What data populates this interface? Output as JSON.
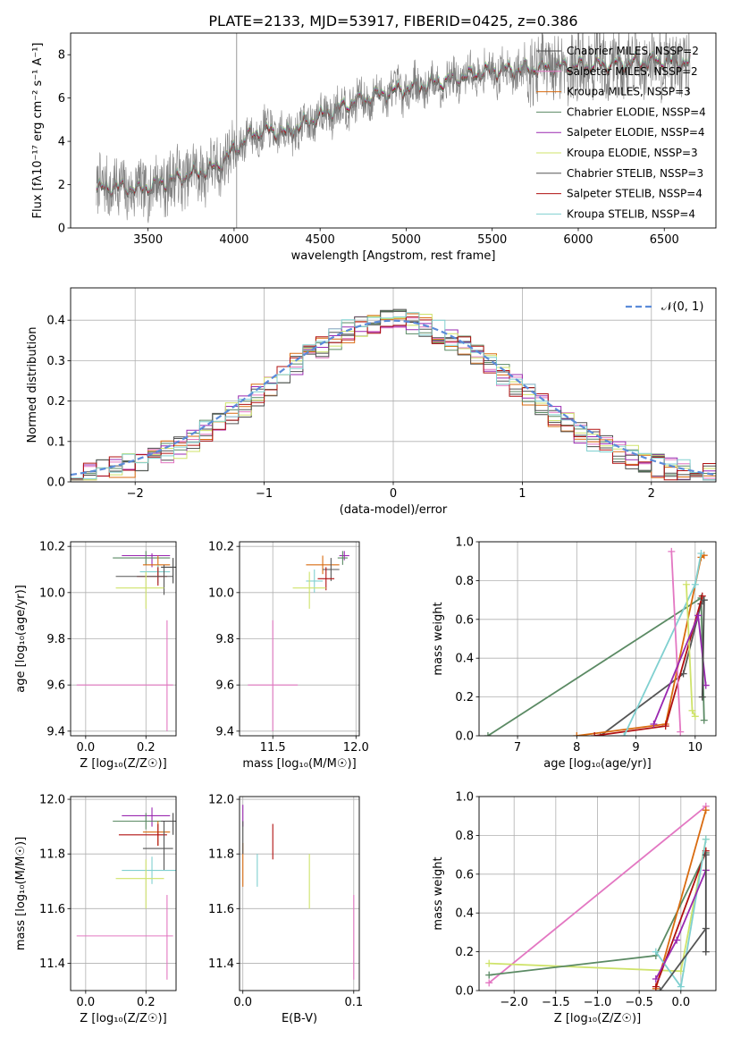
{
  "figure_title": "PLATE=2133, MJD=53917, FIBERID=0425, z=0.386",
  "colors": {
    "Chabrier MILES": "#4a4a4a",
    "Salpeter MILES": "#e377c2",
    "Kroupa MILES": "#d96b10",
    "Chabrier ELODIE": "#5b8a64",
    "Salpeter ELODIE": "#9a28b0",
    "Kroupa ELODIE": "#cfe36a",
    "Chabrier STELIB": "#555555",
    "Salpeter STELIB": "#b01010",
    "Kroupa STELIB": "#80d0d0",
    "gaussian": "#5b8bd9"
  },
  "chart_data": [
    {
      "id": "spectrum",
      "type": "line",
      "xlabel": "wavelength [Angstrom, rest frame]",
      "ylabel": "Flux [f$_\\lambda$10$^{-17}$ erg cm$^{-2}$ s$^{-1}$ A$^{-1}$]",
      "ylabel_display": "Flux [fλ10⁻¹⁷ erg cm⁻² s⁻¹ A⁻¹]",
      "xlim": [
        3050,
        6800
      ],
      "ylim": [
        0,
        9
      ],
      "xticks": [
        3500,
        4000,
        4500,
        5000,
        5500,
        6000,
        6500
      ],
      "yticks": [
        0,
        2,
        4,
        6,
        8
      ],
      "legend": [
        "Chabrier MILES, N$_{SSP}$=2",
        "Salpeter MILES, N$_{SSP}$=2",
        "Kroupa MILES, N$_{SSP}$=3",
        "Chabrier ELODIE, N$_{SSP}$=4",
        "Salpeter ELODIE, N$_{SSP}$=4",
        "Kroupa ELODIE, N$_{SSP}$=3",
        "Chabrier STELIB, N$_{SSP}$=3",
        "Salpeter STELIB, N$_{SSP}$=4",
        "Kroupa STELIB, N$_{SSP}$=4"
      ],
      "legend_display": [
        "Chabrier MILES, NSSP=2",
        "Salpeter MILES, NSSP=2",
        "Kroupa MILES, NSSP=3",
        "Chabrier ELODIE, NSSP=4",
        "Salpeter ELODIE, NSSP=4",
        "Kroupa ELODIE, NSSP=3",
        "Chabrier STELIB, NSSP=3",
        "Salpeter STELIB, NSSP=4",
        "Kroupa STELIB, NSSP=4"
      ],
      "legend_position": "upper right",
      "continuum": {
        "x": [
          3200,
          3300,
          3450,
          3600,
          3750,
          3900,
          4000,
          4100,
          4200,
          4300,
          4500,
          4700,
          4900,
          5100,
          5300,
          5500,
          5700,
          5900,
          6100,
          6300,
          6500,
          6650
        ],
        "y": [
          1.75,
          1.9,
          1.75,
          2.1,
          2.45,
          2.8,
          3.6,
          4.3,
          4.5,
          4.35,
          5.15,
          5.8,
          6.25,
          6.55,
          6.9,
          7.25,
          7.3,
          7.45,
          7.5,
          7.6,
          7.7,
          7.6
        ]
      },
      "model_offsets": [
        0.0,
        0.05,
        0.1,
        -0.05,
        0.08,
        0.15,
        -0.1,
        0.02,
        0.12
      ]
    },
    {
      "id": "residuals",
      "type": "histogram",
      "xlabel": "(data-model)/error",
      "ylabel": "Normed distribution",
      "xlim": [
        -2.5,
        2.5
      ],
      "ylim": [
        0,
        0.48
      ],
      "xticks": [
        -2,
        -1,
        0,
        1,
        2
      ],
      "yticks": [
        0.0,
        0.1,
        0.2,
        0.3,
        0.4
      ],
      "legend": [
        "$\\mathcal{N}(0,1)$"
      ],
      "legend_display": "𝒩(0, 1)",
      "legend_position": "upper right",
      "bin_width": 0.1,
      "bin_start": -2.5
    },
    {
      "id": "age_vs_Z",
      "type": "errorbar",
      "xlabel": "Z [log$_{10}$(Z/Z$_\\odot$)]",
      "xlabel_display": "Z [log₁₀(Z/Z☉)]",
      "ylabel": "age  [log$_{10}$(age/yr)]",
      "ylabel_display": "age  [log₁₀(age/yr)]",
      "xlim": [
        -0.05,
        0.3
      ],
      "ylim": [
        9.38,
        10.22
      ],
      "xticks": [
        0.0,
        0.2
      ],
      "yticks": [
        9.4,
        9.6,
        9.8,
        10.0,
        10.2
      ],
      "points": [
        {
          "model": "Salpeter MILES",
          "x": 0.27,
          "y": 9.6,
          "xerr": [
            0.3,
            0.02
          ],
          "yerr": [
            0.2,
            0.28
          ]
        },
        {
          "model": "Salpeter ELODIE",
          "x": 0.22,
          "y": 10.16,
          "xerr": [
            0.1,
            0.06
          ],
          "yerr": [
            0.05,
            0.01
          ]
        },
        {
          "model": "Chabrier ELODIE",
          "x": 0.2,
          "y": 10.15,
          "xerr": [
            0.11,
            0.08
          ],
          "yerr": [
            0.03,
            0.03
          ]
        },
        {
          "model": "Kroupa MILES",
          "x": 0.24,
          "y": 10.12,
          "xerr": [
            0.05,
            0.04
          ],
          "yerr": [
            0.05,
            0.04
          ]
        },
        {
          "model": "Kroupa STELIB",
          "x": 0.24,
          "y": 10.09,
          "xerr": [
            0.06,
            0.04
          ],
          "yerr": [
            0.05,
            0.03
          ]
        },
        {
          "model": "Salpeter STELIB",
          "x": 0.24,
          "y": 10.07,
          "xerr": [
            0.07,
            0.03
          ],
          "yerr": [
            0.04,
            0.04
          ]
        },
        {
          "model": "Chabrier STELIB",
          "x": 0.26,
          "y": 10.07,
          "xerr": [
            0.16,
            0.03
          ],
          "yerr": [
            0.08,
            0.05
          ]
        },
        {
          "model": "Kroupa ELODIE",
          "x": 0.2,
          "y": 10.02,
          "xerr": [
            0.1,
            0.06
          ],
          "yerr": [
            0.09,
            0.07
          ]
        },
        {
          "model": "Chabrier MILES",
          "x": 0.29,
          "y": 10.11,
          "xerr": [
            0.04,
            0.01
          ],
          "yerr": [
            0.07,
            0.04
          ]
        }
      ]
    },
    {
      "id": "age_vs_mass",
      "type": "errorbar",
      "xlabel": "mass [log$_{10}$(M/M$_\\odot$)]",
      "xlabel_display": "mass [log₁₀(M/M☉)]",
      "xlim": [
        11.3,
        12.02
      ],
      "ylim": [
        9.38,
        10.22
      ],
      "xticks": [
        11.5,
        12.0
      ],
      "yticks": [
        9.4,
        9.6,
        9.8,
        10.0,
        10.2
      ],
      "points": [
        {
          "model": "Salpeter MILES",
          "x": 11.5,
          "y": 9.6,
          "xerr": [
            0.15,
            0.15
          ],
          "yerr": [
            0.2,
            0.28
          ]
        },
        {
          "model": "Salpeter ELODIE",
          "x": 11.93,
          "y": 10.16,
          "xerr": [
            0.03,
            0.03
          ],
          "yerr": [
            0.02,
            0.02
          ]
        },
        {
          "model": "Kroupa MILES",
          "x": 11.8,
          "y": 10.12,
          "xerr": [
            0.1,
            0.1
          ],
          "yerr": [
            0.04,
            0.04
          ]
        },
        {
          "model": "Chabrier STELIB",
          "x": 11.85,
          "y": 10.1,
          "xerr": [
            0.05,
            0.05
          ],
          "yerr": [
            0.05,
            0.05
          ]
        },
        {
          "model": "Kroupa STELIB",
          "x": 11.75,
          "y": 10.05,
          "xerr": [
            0.05,
            0.05
          ],
          "yerr": [
            0.05,
            0.05
          ]
        },
        {
          "model": "Salpeter STELIB",
          "x": 11.82,
          "y": 10.06,
          "xerr": [
            0.05,
            0.05
          ],
          "yerr": [
            0.05,
            0.05
          ]
        },
        {
          "model": "Kroupa ELODIE",
          "x": 11.72,
          "y": 10.02,
          "xerr": [
            0.1,
            0.1
          ],
          "yerr": [
            0.09,
            0.07
          ]
        },
        {
          "model": "Chabrier ELODIE",
          "x": 11.92,
          "y": 10.15,
          "xerr": [
            0.03,
            0.03
          ],
          "yerr": [
            0.03,
            0.03
          ]
        }
      ]
    },
    {
      "id": "massweight_vs_age",
      "type": "line",
      "xlabel": "age  [log$_{10}$(age/yr)]",
      "xlabel_display": "age  [log₁₀(age/yr)]",
      "ylabel": "mass weight",
      "xlim": [
        6.35,
        10.35
      ],
      "ylim": [
        0,
        1
      ],
      "xticks": [
        7,
        8,
        9,
        10
      ],
      "yticks": [
        0.0,
        0.2,
        0.4,
        0.6,
        0.8,
        1.0
      ],
      "series": [
        {
          "model": "Chabrier ELODIE",
          "x": [
            6.5,
            10.1,
            10.15
          ],
          "y": [
            0.0,
            0.71,
            0.08
          ]
        },
        {
          "model": "Chabrier STELIB",
          "x": [
            8.4,
            9.8,
            10.1,
            10.15
          ],
          "y": [
            0.0,
            0.32,
            0.68,
            0.7
          ]
        },
        {
          "model": "Kroupa MILES",
          "x": [
            8.0,
            9.5,
            10.1,
            10.15
          ],
          "y": [
            0.0,
            0.06,
            0.92,
            0.93
          ]
        },
        {
          "model": "Salpeter STELIB",
          "x": [
            8.3,
            9.5,
            10.12
          ],
          "y": [
            0.0,
            0.05,
            0.72
          ]
        },
        {
          "model": "Kroupa STELIB",
          "x": [
            8.8,
            10.0,
            10.1
          ],
          "y": [
            0.0,
            0.78,
            0.94
          ]
        },
        {
          "model": "Salpeter MILES",
          "x": [
            9.6,
            9.75
          ],
          "y": [
            0.95,
            0.02
          ]
        },
        {
          "model": "Kroupa ELODIE",
          "x": [
            9.85,
            9.95,
            10.0
          ],
          "y": [
            0.78,
            0.13,
            0.1
          ]
        },
        {
          "model": "Salpeter ELODIE",
          "x": [
            9.3,
            10.05,
            10.18
          ],
          "y": [
            0.06,
            0.62,
            0.26
          ]
        },
        {
          "model": "Chabrier MILES",
          "x": [
            10.12,
            10.15
          ],
          "y": [
            0.2,
            0.7
          ]
        }
      ]
    },
    {
      "id": "mass_vs_Z",
      "type": "errorbar",
      "xlabel": "Z [log$_{10}$(Z/Z$_\\odot$)]",
      "xlabel_display": "Z [log₁₀(Z/Z☉)]",
      "ylabel": "mass [log$_{10}$(M/M$_\\odot$)]",
      "ylabel_display": "mass [log₁₀(M/M☉)]",
      "xlim": [
        -0.05,
        0.3
      ],
      "ylim": [
        11.3,
        12.01
      ],
      "xticks": [
        0.0,
        0.2
      ],
      "yticks": [
        11.4,
        11.6,
        11.8,
        12.0
      ],
      "points": [
        {
          "model": "Salpeter MILES",
          "x": 0.27,
          "y": 11.5,
          "xerr": [
            0.3,
            0.02
          ],
          "yerr": [
            0.16,
            0.15
          ]
        },
        {
          "model": "Salpeter ELODIE",
          "x": 0.22,
          "y": 11.94,
          "xerr": [
            0.1,
            0.06
          ],
          "yerr": [
            0.04,
            0.03
          ]
        },
        {
          "model": "Chabrier ELODIE",
          "x": 0.2,
          "y": 11.92,
          "xerr": [
            0.11,
            0.08
          ],
          "yerr": [
            0.03,
            0.03
          ]
        },
        {
          "model": "Kroupa MILES",
          "x": 0.24,
          "y": 11.88,
          "xerr": [
            0.05,
            0.04
          ],
          "yerr": [
            0.05,
            0.04
          ]
        },
        {
          "model": "Salpeter STELIB",
          "x": 0.24,
          "y": 11.87,
          "xerr": [
            0.13,
            0.03
          ],
          "yerr": [
            0.04,
            0.04
          ]
        },
        {
          "model": "Chabrier STELIB",
          "x": 0.26,
          "y": 11.82,
          "xerr": [
            0.07,
            0.03
          ],
          "yerr": [
            0.08,
            0.1
          ]
        },
        {
          "model": "Kroupa STELIB",
          "x": 0.22,
          "y": 11.74,
          "xerr": [
            0.1,
            0.08
          ],
          "yerr": [
            0.05,
            0.05
          ]
        },
        {
          "model": "Kroupa ELODIE",
          "x": 0.2,
          "y": 11.71,
          "xerr": [
            0.1,
            0.06
          ],
          "yerr": [
            0.11,
            0.07
          ]
        },
        {
          "model": "Chabrier MILES",
          "x": 0.29,
          "y": 11.92,
          "xerr": [
            0.04,
            0.01
          ],
          "yerr": [
            0.05,
            0.03
          ]
        }
      ]
    },
    {
      "id": "mass_vs_EBV",
      "type": "errorbar",
      "xlabel": "E(B-V)",
      "xlim": [
        -0.003,
        0.105
      ],
      "ylim": [
        11.3,
        12.01
      ],
      "xticks": [
        0.0,
        0.1
      ],
      "yticks": [
        11.4,
        11.6,
        11.8,
        12.0
      ],
      "points": [
        {
          "model": "Salpeter MILES",
          "x": 0.1,
          "y": 11.5,
          "xerr": [
            0,
            0
          ],
          "yerr": [
            0.16,
            0.15
          ]
        },
        {
          "model": "Salpeter ELODIE",
          "x": 0.0,
          "y": 11.94,
          "xerr": [
            0,
            0
          ],
          "yerr": [
            0.04,
            0.04
          ]
        },
        {
          "model": "Kroupa MILES",
          "x": 0.0,
          "y": 11.76,
          "xerr": [
            0,
            0
          ],
          "yerr": [
            0.08,
            0.08
          ]
        },
        {
          "model": "Salpeter STELIB",
          "x": 0.027,
          "y": 11.84,
          "xerr": [
            0,
            0
          ],
          "yerr": [
            0.06,
            0.07
          ]
        },
        {
          "model": "Kroupa STELIB",
          "x": 0.013,
          "y": 11.74,
          "xerr": [
            0,
            0
          ],
          "yerr": [
            0.06,
            0.06
          ]
        },
        {
          "model": "Kroupa ELODIE",
          "x": 0.06,
          "y": 11.7,
          "xerr": [
            0,
            0
          ],
          "yerr": [
            0.1,
            0.1
          ]
        },
        {
          "model": "Chabrier STELIB",
          "x": 0.0,
          "y": 11.86,
          "xerr": [
            0,
            0
          ],
          "yerr": [
            0.06,
            0.06
          ]
        }
      ]
    },
    {
      "id": "massweight_vs_Z",
      "type": "line",
      "xlabel": "Z [log$_{10}$(Z/Z$_\\odot$)]",
      "xlabel_display": "Z [log₁₀(Z/Z☉)]",
      "ylabel": "mass weight",
      "xlim": [
        -2.42,
        0.42
      ],
      "ylim": [
        0,
        1
      ],
      "xticks": [
        -2.0,
        -1.5,
        -1.0,
        -0.5,
        0.0
      ],
      "yticks": [
        0.0,
        0.2,
        0.4,
        0.6,
        0.8,
        1.0
      ],
      "series": [
        {
          "model": "Salpeter MILES",
          "x": [
            -2.3,
            0.3
          ],
          "y": [
            0.04,
            0.95
          ]
        },
        {
          "model": "Kroupa ELODIE",
          "x": [
            -2.3,
            0.0,
            0.3
          ],
          "y": [
            0.14,
            0.1,
            0.78
          ]
        },
        {
          "model": "Chabrier ELODIE",
          "x": [
            -2.3,
            -0.3,
            0.3
          ],
          "y": [
            0.08,
            0.18,
            0.71
          ]
        },
        {
          "model": "Kroupa MILES",
          "x": [
            -0.3,
            0.3
          ],
          "y": [
            0.01,
            0.93
          ]
        },
        {
          "model": "Salpeter STELIB",
          "x": [
            -0.3,
            0.3
          ],
          "y": [
            0.02,
            0.72
          ]
        },
        {
          "model": "Kroupa STELIB",
          "x": [
            -0.3,
            0.0,
            0.3
          ],
          "y": [
            0.2,
            0.02,
            0.78
          ]
        },
        {
          "model": "Salpeter ELODIE",
          "x": [
            -0.3,
            -0.05,
            0.3
          ],
          "y": [
            0.06,
            0.26,
            0.62
          ]
        },
        {
          "model": "Chabrier STELIB",
          "x": [
            -0.25,
            0.3
          ],
          "y": [
            0.0,
            0.32
          ]
        },
        {
          "model": "Chabrier MILES",
          "x": [
            0.3,
            0.3
          ],
          "y": [
            0.2,
            0.7
          ]
        }
      ]
    }
  ]
}
